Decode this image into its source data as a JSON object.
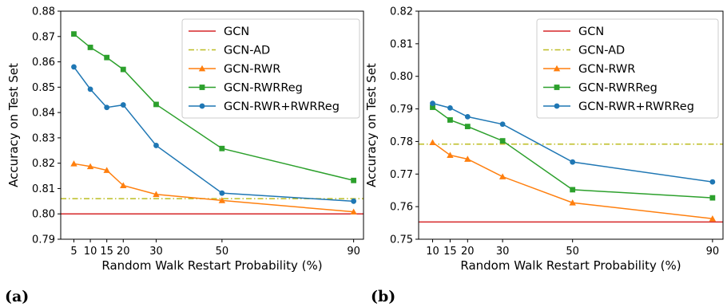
{
  "chart_data": [
    {
      "type": "line",
      "panel_label": "(a)",
      "xlabel": "Random Walk Restart Probability (%)",
      "ylabel": "Accuracy on Test Set",
      "xlim": [
        1,
        93
      ],
      "ylim": [
        0.79,
        0.88
      ],
      "xticks": [
        5,
        10,
        15,
        20,
        30,
        50,
        90
      ],
      "yticks": [
        0.79,
        0.8,
        0.81,
        0.82,
        0.83,
        0.84,
        0.85,
        0.86,
        0.87,
        0.88
      ],
      "ytick_labels": [
        "0.79",
        "0.80",
        "0.81",
        "0.82",
        "0.83",
        "0.84",
        "0.85",
        "0.86",
        "0.87",
        "0.88"
      ],
      "legend_position": "top-right",
      "grid": false,
      "x": [
        5,
        10,
        15,
        20,
        30,
        50,
        90
      ],
      "series": [
        {
          "name": "GCN",
          "kind": "hline",
          "value": 0.8,
          "color": "#d62728",
          "style": "solid"
        },
        {
          "name": "GCN-AD",
          "kind": "hline",
          "value": 0.806,
          "color": "#bcbd22",
          "style": "dashdot"
        },
        {
          "name": "GCN-RWR",
          "kind": "line",
          "marker": "triangle",
          "color": "#ff7f0e",
          "values": [
            0.8198,
            0.8187,
            0.8172,
            0.8112,
            0.8077,
            0.8053,
            0.8008
          ]
        },
        {
          "name": "GCN-RWRReg",
          "kind": "line",
          "marker": "square",
          "color": "#2ca02c",
          "values": [
            0.871,
            0.8657,
            0.8617,
            0.857,
            0.8432,
            0.8258,
            0.8132
          ]
        },
        {
          "name": "GCN-RWR+RWRReg",
          "kind": "line",
          "marker": "circle",
          "color": "#1f77b4",
          "values": [
            0.858,
            0.8492,
            0.842,
            0.843,
            0.827,
            0.8082,
            0.805
          ]
        }
      ]
    },
    {
      "type": "line",
      "panel_label": "(b)",
      "xlabel": "Random Walk Restart Probability (%)",
      "ylabel": "Accuracy on Test Set",
      "xlim": [
        6,
        93
      ],
      "ylim": [
        0.75,
        0.82
      ],
      "xticks": [
        10,
        15,
        20,
        30,
        50,
        90
      ],
      "yticks": [
        0.75,
        0.76,
        0.77,
        0.78,
        0.79,
        0.8,
        0.81,
        0.82
      ],
      "ytick_labels": [
        "0.75",
        "0.76",
        "0.77",
        "0.78",
        "0.79",
        "0.80",
        "0.81",
        "0.82"
      ],
      "legend_position": "top-right",
      "grid": false,
      "x": [
        10,
        15,
        20,
        30,
        50,
        90
      ],
      "series": [
        {
          "name": "GCN",
          "kind": "hline",
          "value": 0.7553,
          "color": "#d62728",
          "style": "solid"
        },
        {
          "name": "GCN-AD",
          "kind": "hline",
          "value": 0.7792,
          "color": "#bcbd22",
          "style": "dashdot"
        },
        {
          "name": "GCN-RWR",
          "kind": "line",
          "marker": "triangle",
          "color": "#ff7f0e",
          "values": [
            0.7797,
            0.7758,
            0.7746,
            0.7692,
            0.7612,
            0.7563
          ]
        },
        {
          "name": "GCN-RWRReg",
          "kind": "line",
          "marker": "square",
          "color": "#2ca02c",
          "values": [
            0.7905,
            0.7866,
            0.7846,
            0.7802,
            0.7652,
            0.7627
          ]
        },
        {
          "name": "GCN-RWR+RWRReg",
          "kind": "line",
          "marker": "circle",
          "color": "#1f77b4",
          "values": [
            0.7917,
            0.7903,
            0.7876,
            0.7853,
            0.7737,
            0.7676
          ]
        }
      ]
    }
  ]
}
